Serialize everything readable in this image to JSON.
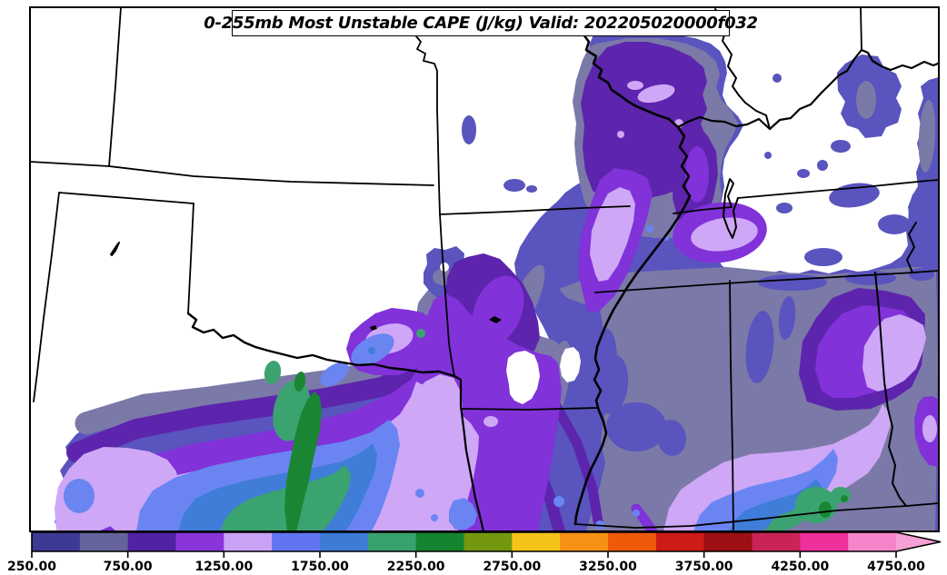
{
  "title": {
    "text": "0-255mb Most Unstable CAPE (J/kg) Valid: 202205020000f032"
  },
  "chart_data": {
    "type": "filled-contour-map",
    "title": "0-255mb Most Unstable CAPE (J/kg) Valid: 202205020000f032",
    "variable": "Most Unstable CAPE",
    "layer": "0-255mb",
    "units": "J/kg",
    "valid_time": "202205020000f032",
    "geography": "US state boundaries, south-central United States region",
    "colorbar": {
      "orientation": "horizontal",
      "extend": "max",
      "contour_interval": 250,
      "range": [
        250,
        4750
      ],
      "tick_values": [
        250,
        750,
        1250,
        1750,
        2250,
        2750,
        3250,
        3750,
        4250,
        4750
      ],
      "tick_labels": [
        "250.00",
        "750.00",
        "1250.00",
        "1750.00",
        "2250.00",
        "2750.00",
        "3250.00",
        "3750.00",
        "4250.00",
        "4750.00"
      ],
      "levels": [
        250,
        500,
        750,
        1000,
        1250,
        1500,
        1750,
        2000,
        2250,
        2500,
        2750,
        3000,
        3250,
        3500,
        3750,
        4000,
        4250,
        4500,
        4750
      ],
      "colors": [
        "#3C3A95",
        "#64639B",
        "#4F23A3",
        "#8A35DC",
        "#C9A2F5",
        "#6175F2",
        "#3C7BD6",
        "#39A16E",
        "#15842F",
        "#73970F",
        "#F4C319",
        "#F59114",
        "#EE5A0A",
        "#CD1B17",
        "#9C0F12",
        "#C92457",
        "#EF2F9B",
        "#F584CB"
      ],
      "extend_color": "#F6A0D5",
      "frame_color": "#000000"
    }
  }
}
